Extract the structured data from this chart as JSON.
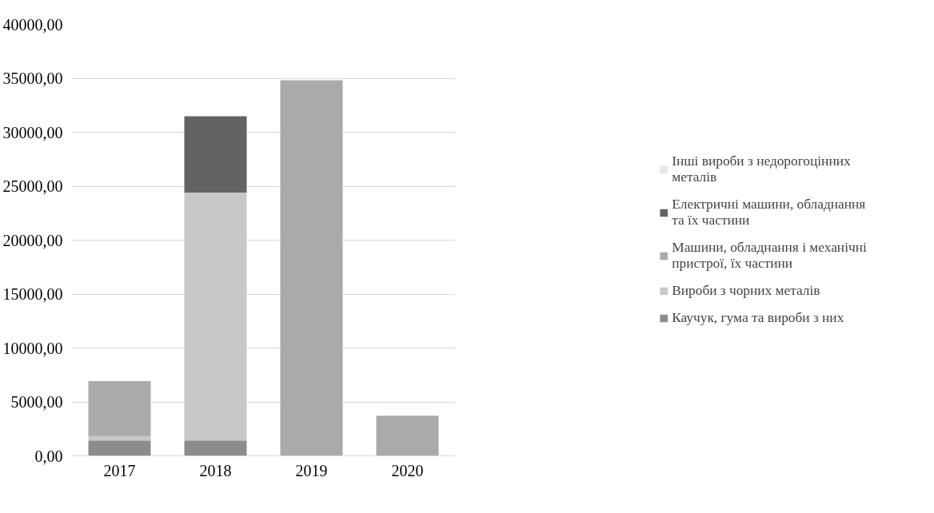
{
  "chart_data": {
    "type": "bar",
    "stacked": true,
    "categories": [
      "2017",
      "2018",
      "2019",
      "2020"
    ],
    "series": [
      {
        "name": "Каучук, гума та вироби з них",
        "color": "#8c8c8c",
        "values": [
          1420,
          1420,
          null,
          null
        ]
      },
      {
        "name": "Вироби з чорних металів",
        "color": "#c8c8c8",
        "values": [
          420,
          22980,
          null,
          null
        ]
      },
      {
        "name": "Машини, обладнання і механічні пристрої, їх частини",
        "color": "#aaaaaa",
        "values": [
          5080,
          null,
          34820,
          3720
        ]
      },
      {
        "name": "Електричні машини, обладнання та їх частини",
        "color": "#636363",
        "values": [
          null,
          7090,
          null,
          null
        ]
      },
      {
        "name": "Інші вироби з недорогоцінних металів",
        "color": "#e6e6e6",
        "values": [
          null,
          null,
          null,
          null
        ]
      }
    ],
    "ylim": [
      0,
      40000
    ],
    "yticks": [
      {
        "value": 0,
        "label": "0,00"
      },
      {
        "value": 5000,
        "label": "5000,00"
      },
      {
        "value": 10000,
        "label": "10000,00"
      },
      {
        "value": 15000,
        "label": "15000,00"
      },
      {
        "value": 20000,
        "label": "20000,00"
      },
      {
        "value": 25000,
        "label": "25000,00"
      },
      {
        "value": 30000,
        "label": "30000,00"
      },
      {
        "value": 35000,
        "label": "35000,00"
      },
      {
        "value": 40000,
        "label": "40000,00"
      }
    ],
    "grid": "y",
    "legend": "right"
  }
}
